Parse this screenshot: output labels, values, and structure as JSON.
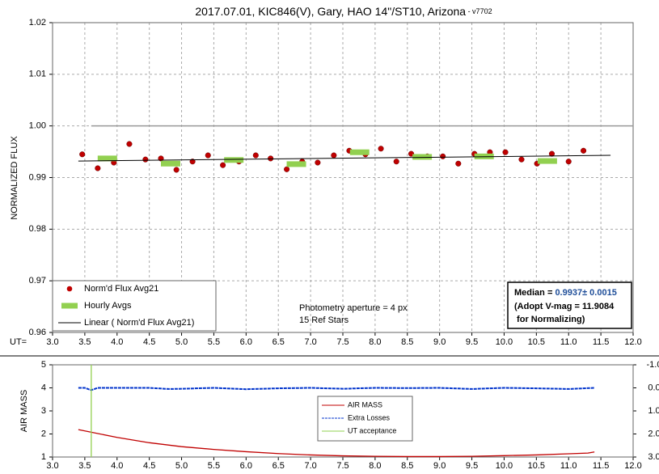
{
  "chart_data": [
    {
      "type": "scatter",
      "title": "2017.07.01, KIC846(V), Gary, HAO 14\"/ST10, Arizona",
      "title_suffix": " - v7702",
      "ylabel": "NORMALIZED FLUX",
      "x_axis_prefix": "UT=",
      "annotations": [
        "Photometry aperture = 4 px",
        "15 Ref Stars"
      ],
      "median_box": {
        "label": "Median = ",
        "value": "0.9937± 0.0015",
        "line2": "(Adopt V-mag = 11.9084",
        "line3": " for Normalizing)"
      },
      "xlim": [
        3.0,
        12.0
      ],
      "xticks": [
        {
          "value": 3,
          "label": "3.0"
        },
        {
          "value": 3.5,
          "label": "3.5"
        },
        {
          "value": 4,
          "label": "4.0"
        },
        {
          "value": 4.5,
          "label": "4.5"
        },
        {
          "value": 5,
          "label": "5.0"
        },
        {
          "value": 5.5,
          "label": "5.5"
        },
        {
          "value": 6,
          "label": "6.0"
        },
        {
          "value": 6.5,
          "label": "6.5"
        },
        {
          "value": 7,
          "label": "7.0"
        },
        {
          "value": 7.5,
          "label": "7.5"
        },
        {
          "value": 8,
          "label": "8.0"
        },
        {
          "value": 8.5,
          "label": "8.5"
        },
        {
          "value": 9,
          "label": "9.0"
        },
        {
          "value": 9.5,
          "label": "9.5"
        },
        {
          "value": 10,
          "label": "10.0"
        },
        {
          "value": 10.5,
          "label": "10.5"
        },
        {
          "value": 11,
          "label": "11.0"
        },
        {
          "value": 11.5,
          "label": "11.5"
        },
        {
          "value": 12,
          "label": "12.0"
        }
      ],
      "ylim": [
        0.96,
        1.02
      ],
      "yticks": [
        0.96,
        0.97,
        0.98,
        0.99,
        {
          "value": 1.0,
          "label": "1.00"
        },
        1.01,
        1.02
      ],
      "grid": true,
      "series": [
        {
          "name": "Norm'd Flux Avg21",
          "marker": "circle",
          "color": "#c00000",
          "x": [
            3.46,
            3.7,
            3.95,
            4.19,
            4.44,
            4.68,
            4.92,
            5.17,
            5.41,
            5.64,
            5.89,
            6.15,
            6.38,
            6.63,
            6.87,
            7.11,
            7.36,
            7.6,
            7.85,
            8.09,
            8.33,
            8.56,
            8.81,
            9.05,
            9.29,
            9.54,
            9.78,
            10.02,
            10.27,
            10.51,
            10.74,
            11.0,
            11.23
          ],
          "values": [
            0.9945,
            0.9918,
            0.9929,
            0.9965,
            0.9935,
            0.9937,
            0.9915,
            0.9931,
            0.9943,
            0.9924,
            0.9931,
            0.9943,
            0.9937,
            0.9916,
            0.9931,
            0.9929,
            0.9943,
            0.9952,
            0.9945,
            0.9956,
            0.9931,
            0.9946,
            0.9941,
            0.9941,
            0.9927,
            0.9946,
            0.9949,
            0.9949,
            0.9935,
            0.9927,
            0.9946,
            0.9931,
            0.9952
          ]
        },
        {
          "name": "Hourly Avgs",
          "marker": "dash",
          "color": "#92d050",
          "x": [
            3.85,
            4.83,
            5.81,
            6.78,
            7.76,
            8.73,
            9.69,
            10.67
          ],
          "values": [
            0.9937,
            0.9927,
            0.9934,
            0.9926,
            0.9949,
            0.994,
            0.9941,
            0.9932
          ]
        },
        {
          "name": "Linear ( Norm'd Flux Avg21)",
          "marker": "line",
          "color": "#000000",
          "x": [
            3.4,
            11.65
          ],
          "values": [
            0.9932,
            0.9943
          ]
        },
        {
          "marker": "line",
          "color": "#999999",
          "x": [
            3.6,
            12.0
          ],
          "values": [
            1.0,
            1.0
          ]
        }
      ]
    },
    {
      "type": "line",
      "ylabel": "AIR MASS",
      "xlim": [
        3.0,
        12.0
      ],
      "xticks": [
        {
          "value": 3,
          "label": "3.0"
        },
        {
          "value": 3.5,
          "label": "3.5"
        },
        {
          "value": 4,
          "label": "4.0"
        },
        {
          "value": 4.5,
          "label": "4.5"
        },
        {
          "value": 5,
          "label": "5.0"
        },
        {
          "value": 5.5,
          "label": "5.5"
        },
        {
          "value": 6,
          "label": "6.0"
        },
        {
          "value": 6.5,
          "label": "6.5"
        },
        {
          "value": 7,
          "label": "7.0"
        },
        {
          "value": 7.5,
          "label": "7.5"
        },
        {
          "value": 8,
          "label": "8.0"
        },
        {
          "value": 8.5,
          "label": "8.5"
        },
        {
          "value": 9,
          "label": "9.0"
        },
        {
          "value": 9.5,
          "label": "9.5"
        },
        {
          "value": 10,
          "label": "10.0"
        },
        {
          "value": 10.5,
          "label": "10.5"
        },
        {
          "value": 11,
          "label": "11.0"
        },
        {
          "value": 11.5,
          "label": "11.5"
        },
        {
          "value": 12,
          "label": "12.0"
        }
      ],
      "ylim": [
        1,
        5
      ],
      "yticks": [
        1,
        2,
        3,
        4,
        5
      ],
      "y2lim": [
        -1.0,
        3.0
      ],
      "y2_inverted": true,
      "y2ticks": [
        {
          "value": -1,
          "label": "-1.0"
        },
        {
          "value": 0,
          "label": "0.0"
        },
        {
          "value": 1,
          "label": "1.0"
        },
        {
          "value": 2,
          "label": "2.0"
        },
        {
          "value": 3,
          "label": "3.0"
        }
      ],
      "series": [
        {
          "name": "AIR MASS",
          "color": "#c00000",
          "dash": false,
          "x": [
            3.4,
            4.0,
            4.5,
            5.0,
            5.5,
            6.0,
            6.5,
            7.0,
            7.5,
            8.0,
            8.5,
            9.0,
            9.5,
            10.0,
            10.5,
            11.0,
            11.3,
            11.4
          ],
          "values": [
            2.19,
            1.85,
            1.62,
            1.45,
            1.33,
            1.23,
            1.15,
            1.09,
            1.05,
            1.03,
            1.02,
            1.02,
            1.03,
            1.06,
            1.09,
            1.14,
            1.17,
            1.22
          ]
        },
        {
          "name": "Extra Losses",
          "color": "#0033cc",
          "dash": true,
          "axis": "y2",
          "x": [
            3.4,
            3.5,
            3.6,
            3.7,
            4.0,
            4.5,
            4.8,
            5.0,
            5.5,
            6.0,
            6.5,
            7.0,
            7.5,
            8.0,
            8.5,
            9.0,
            9.5,
            10.0,
            10.5,
            11.0,
            11.4
          ],
          "values": [
            0,
            0,
            0.1,
            0,
            0,
            0,
            0.05,
            0.04,
            0,
            0.06,
            0.02,
            0,
            0.04,
            0,
            0.01,
            0,
            0.05,
            0,
            0.02,
            0.05,
            0
          ]
        },
        {
          "name": "UT acceptance",
          "color": "#92d050",
          "dash": false,
          "x": [
            3.6,
            3.6
          ],
          "values": [
            1,
            5
          ]
        }
      ]
    }
  ]
}
